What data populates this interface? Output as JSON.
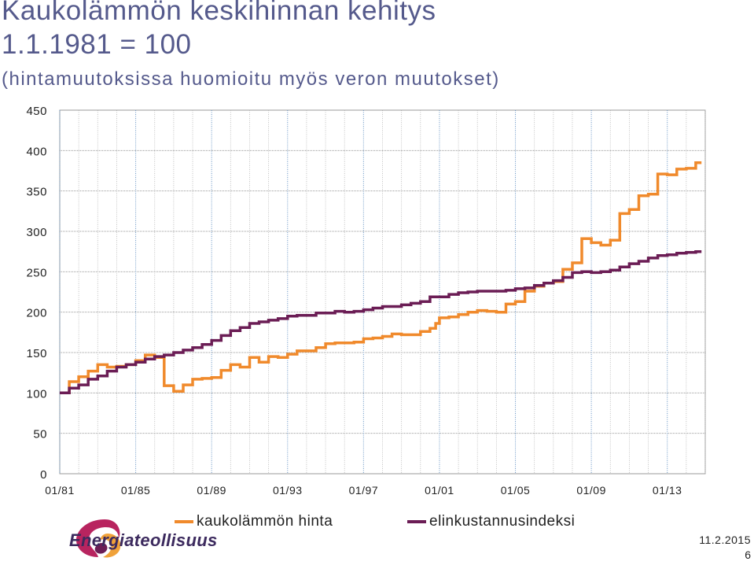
{
  "header": {
    "title_line1": "Kaukolämmön keskihinnan kehitys",
    "title_line2": "1.1.1981 = 100",
    "subtitle": "(hintamuutoksissa huomioitu myös veron muutokset)"
  },
  "footer": {
    "logo_text": "Energiateollisuus",
    "date": "11.2.2015",
    "page": "6"
  },
  "colors": {
    "district_heat": "#f08a2c",
    "cpi": "#6b1d55",
    "grid": "#9a9a9a",
    "year_grid": "#6a96c6"
  },
  "chart_data": {
    "type": "line",
    "step": true,
    "x_unit": "year",
    "x_range": [
      1981.0,
      2015.0
    ],
    "ylim": [
      0,
      450
    ],
    "y_ticks": [
      0,
      50,
      100,
      150,
      200,
      250,
      300,
      350,
      400,
      450
    ],
    "x_ticks": [
      {
        "x": 1981,
        "label": "01/81"
      },
      {
        "x": 1985,
        "label": "01/85"
      },
      {
        "x": 1989,
        "label": "01/89"
      },
      {
        "x": 1993,
        "label": "01/93"
      },
      {
        "x": 1997,
        "label": "01/97"
      },
      {
        "x": 2001,
        "label": "01/01"
      },
      {
        "x": 2005,
        "label": "01/05"
      },
      {
        "x": 2009,
        "label": "01/09"
      },
      {
        "x": 2013,
        "label": "01/13"
      }
    ],
    "grid": true,
    "legend_position": "bottom",
    "series": [
      {
        "name": "kaukolämmön hinta",
        "color": "#f08a2c",
        "points": [
          [
            1981.0,
            100
          ],
          [
            1981.5,
            114
          ],
          [
            1982.0,
            120
          ],
          [
            1982.5,
            127
          ],
          [
            1983.0,
            135
          ],
          [
            1983.5,
            132
          ],
          [
            1984.0,
            133
          ],
          [
            1984.5,
            135
          ],
          [
            1985.0,
            140
          ],
          [
            1985.5,
            147
          ],
          [
            1986.0,
            144
          ],
          [
            1986.5,
            109
          ],
          [
            1987.0,
            102
          ],
          [
            1987.5,
            110
          ],
          [
            1988.0,
            117
          ],
          [
            1988.5,
            118
          ],
          [
            1989.0,
            119
          ],
          [
            1989.5,
            128
          ],
          [
            1990.0,
            135
          ],
          [
            1990.5,
            132
          ],
          [
            1991.0,
            144
          ],
          [
            1991.5,
            138
          ],
          [
            1992.0,
            145
          ],
          [
            1992.5,
            144
          ],
          [
            1993.0,
            148
          ],
          [
            1993.5,
            152
          ],
          [
            1994.0,
            152
          ],
          [
            1994.5,
            156
          ],
          [
            1995.0,
            161
          ],
          [
            1995.5,
            162
          ],
          [
            1996.0,
            162
          ],
          [
            1996.5,
            163
          ],
          [
            1997.0,
            167
          ],
          [
            1997.5,
            168
          ],
          [
            1998.0,
            170
          ],
          [
            1998.5,
            173
          ],
          [
            1999.0,
            172
          ],
          [
            1999.5,
            172
          ],
          [
            2000.0,
            176
          ],
          [
            2000.5,
            180
          ],
          [
            2000.8,
            186
          ],
          [
            2001.0,
            193
          ],
          [
            2001.5,
            194
          ],
          [
            2002.0,
            197
          ],
          [
            2002.5,
            200
          ],
          [
            2003.0,
            202
          ],
          [
            2003.5,
            201
          ],
          [
            2004.0,
            200
          ],
          [
            2004.5,
            210
          ],
          [
            2005.0,
            213
          ],
          [
            2005.5,
            226
          ],
          [
            2006.0,
            232
          ],
          [
            2006.5,
            236
          ],
          [
            2007.0,
            238
          ],
          [
            2007.5,
            253
          ],
          [
            2008.0,
            261
          ],
          [
            2008.5,
            291
          ],
          [
            2009.0,
            286
          ],
          [
            2009.5,
            283
          ],
          [
            2010.0,
            289
          ],
          [
            2010.5,
            322
          ],
          [
            2011.0,
            327
          ],
          [
            2011.5,
            344
          ],
          [
            2012.0,
            346
          ],
          [
            2012.5,
            371
          ],
          [
            2013.0,
            370
          ],
          [
            2013.5,
            377
          ],
          [
            2014.0,
            378
          ],
          [
            2014.5,
            385
          ],
          [
            2014.8,
            385
          ]
        ]
      },
      {
        "name": "elinkustannusindeksi",
        "color": "#6b1d55",
        "points": [
          [
            1981.0,
            100
          ],
          [
            1981.5,
            106
          ],
          [
            1982.0,
            110
          ],
          [
            1982.5,
            117
          ],
          [
            1983.0,
            121
          ],
          [
            1983.5,
            127
          ],
          [
            1984.0,
            132
          ],
          [
            1984.5,
            135
          ],
          [
            1985.0,
            138
          ],
          [
            1985.5,
            142
          ],
          [
            1986.0,
            145
          ],
          [
            1986.5,
            147
          ],
          [
            1987.0,
            150
          ],
          [
            1987.5,
            153
          ],
          [
            1988.0,
            156
          ],
          [
            1988.5,
            160
          ],
          [
            1989.0,
            165
          ],
          [
            1989.5,
            171
          ],
          [
            1990.0,
            177
          ],
          [
            1990.5,
            181
          ],
          [
            1991.0,
            186
          ],
          [
            1991.5,
            188
          ],
          [
            1992.0,
            190
          ],
          [
            1992.5,
            192
          ],
          [
            1993.0,
            195
          ],
          [
            1993.5,
            196
          ],
          [
            1994.0,
            196
          ],
          [
            1994.5,
            199
          ],
          [
            1995.0,
            199
          ],
          [
            1995.5,
            201
          ],
          [
            1996.0,
            200
          ],
          [
            1996.5,
            201
          ],
          [
            1997.0,
            203
          ],
          [
            1997.5,
            205
          ],
          [
            1998.0,
            207
          ],
          [
            1998.5,
            207
          ],
          [
            1999.0,
            209
          ],
          [
            1999.5,
            211
          ],
          [
            2000.0,
            213
          ],
          [
            2000.5,
            219
          ],
          [
            2001.0,
            219
          ],
          [
            2001.5,
            222
          ],
          [
            2002.0,
            224
          ],
          [
            2002.5,
            225
          ],
          [
            2003.0,
            226
          ],
          [
            2003.5,
            226
          ],
          [
            2004.0,
            226
          ],
          [
            2004.5,
            227
          ],
          [
            2005.0,
            229
          ],
          [
            2005.5,
            230
          ],
          [
            2006.0,
            233
          ],
          [
            2006.5,
            236
          ],
          [
            2007.0,
            239
          ],
          [
            2007.5,
            243
          ],
          [
            2008.0,
            249
          ],
          [
            2008.5,
            250
          ],
          [
            2009.0,
            249
          ],
          [
            2009.5,
            250
          ],
          [
            2010.0,
            252
          ],
          [
            2010.5,
            256
          ],
          [
            2011.0,
            260
          ],
          [
            2011.5,
            263
          ],
          [
            2012.0,
            267
          ],
          [
            2012.5,
            270
          ],
          [
            2013.0,
            271
          ],
          [
            2013.5,
            273
          ],
          [
            2014.0,
            274
          ],
          [
            2014.5,
            275
          ],
          [
            2014.8,
            275
          ]
        ]
      }
    ]
  }
}
